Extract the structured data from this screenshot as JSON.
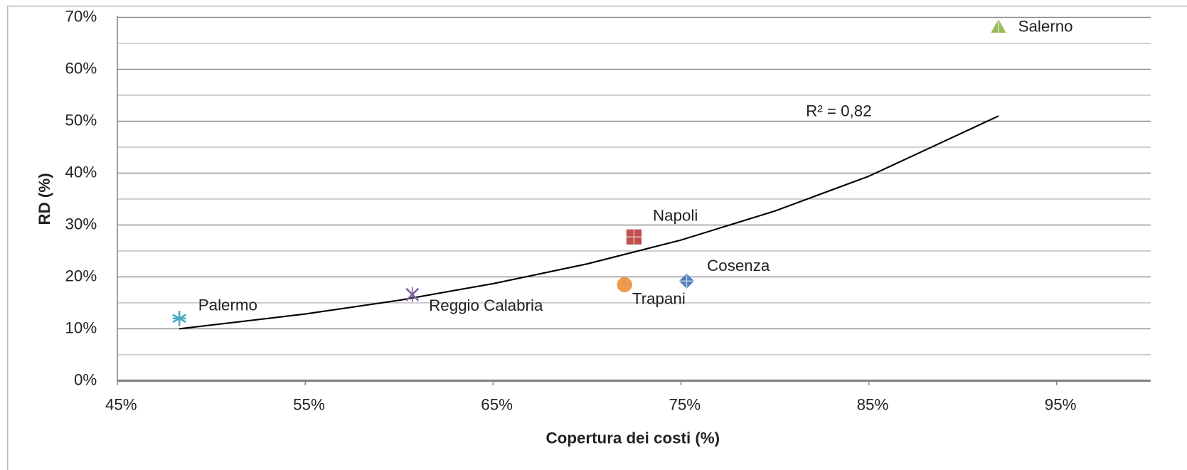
{
  "chart_data": {
    "type": "scatter",
    "x_label": "Copertura dei costi (%)",
    "y_label": "RD (%)",
    "annotation": "R² = 0,82",
    "xlim": [
      45,
      100
    ],
    "xticks": [
      {
        "value": 45,
        "label": "45%"
      },
      {
        "value": 55,
        "label": "55%"
      },
      {
        "value": 65,
        "label": "65%"
      },
      {
        "value": 75,
        "label": "75%"
      },
      {
        "value": 85,
        "label": "85%"
      },
      {
        "value": 95,
        "label": "95%"
      }
    ],
    "ylim": [
      0,
      70
    ],
    "yticks": [
      {
        "value": 0,
        "label": "0%"
      },
      {
        "value": 10,
        "label": "10%"
      },
      {
        "value": 20,
        "label": "20%"
      },
      {
        "value": 30,
        "label": "30%"
      },
      {
        "value": 40,
        "label": "40%"
      },
      {
        "value": 50,
        "label": "50%"
      },
      {
        "value": 60,
        "label": "60%"
      },
      {
        "value": 70,
        "label": "70%"
      }
    ],
    "y_minor_gridlines": [
      5,
      15,
      25,
      35,
      45,
      55,
      65
    ],
    "grid": true,
    "series": [
      {
        "name": "Palermo",
        "color": "#4bacc6",
        "marker": "asterisk",
        "x": [
          48.3
        ],
        "y": [
          12.0
        ]
      },
      {
        "name": "Reggio Calabria",
        "color": "#8064a2",
        "marker": "star",
        "x": [
          60.7
        ],
        "y": [
          16.6
        ]
      },
      {
        "name": "Trapani",
        "color": "#f79646",
        "marker": "circle",
        "x": [
          72.0
        ],
        "y": [
          18.5
        ]
      },
      {
        "name": "Napoli",
        "color": "#c0504d",
        "marker": "square",
        "x": [
          72.5
        ],
        "y": [
          27.7
        ]
      },
      {
        "name": "Cosenza",
        "color": "#4f81bd",
        "marker": "diamond",
        "x": [
          75.3
        ],
        "y": [
          19.2
        ]
      },
      {
        "name": "Salerno",
        "color": "#9bbb59",
        "marker": "triangle",
        "x": [
          91.9
        ],
        "y": [
          68.2
        ]
      }
    ],
    "trendline": {
      "color": "#000000",
      "x": [
        48.3,
        55,
        60,
        65,
        70,
        75,
        80,
        85,
        91.9
      ],
      "y": [
        10.0,
        12.85,
        15.5,
        18.7,
        22.5,
        27.1,
        32.7,
        39.4,
        51.0
      ]
    }
  }
}
